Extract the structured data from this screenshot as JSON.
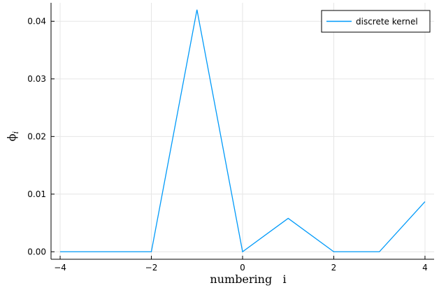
{
  "chart_data": {
    "type": "line",
    "title": "",
    "xlabel": "numbering   i",
    "ylabel": "ϕ",
    "ylabel_subscript": "i",
    "xlim": [
      -4.2,
      4.2
    ],
    "ylim": [
      -0.0013,
      0.0432
    ],
    "xticks": [
      -4,
      -2,
      0,
      2,
      4
    ],
    "xtick_labels": [
      "−4",
      "−2",
      "0",
      "2",
      "4"
    ],
    "yticks": [
      0.0,
      0.01,
      0.02,
      0.03,
      0.04
    ],
    "ytick_labels": [
      "0.00",
      "0.01",
      "0.02",
      "0.03",
      "0.04"
    ],
    "grid": true,
    "legend_position": "top-right",
    "series": [
      {
        "name": "discrete kernel",
        "color": "#009af9",
        "x": [
          -4,
          -3,
          -2,
          -1,
          0,
          1,
          2,
          3,
          4
        ],
        "y": [
          0.0,
          0.0,
          0.0,
          0.042,
          0.0,
          0.0058,
          0.0,
          0.0,
          0.0087
        ]
      }
    ]
  }
}
